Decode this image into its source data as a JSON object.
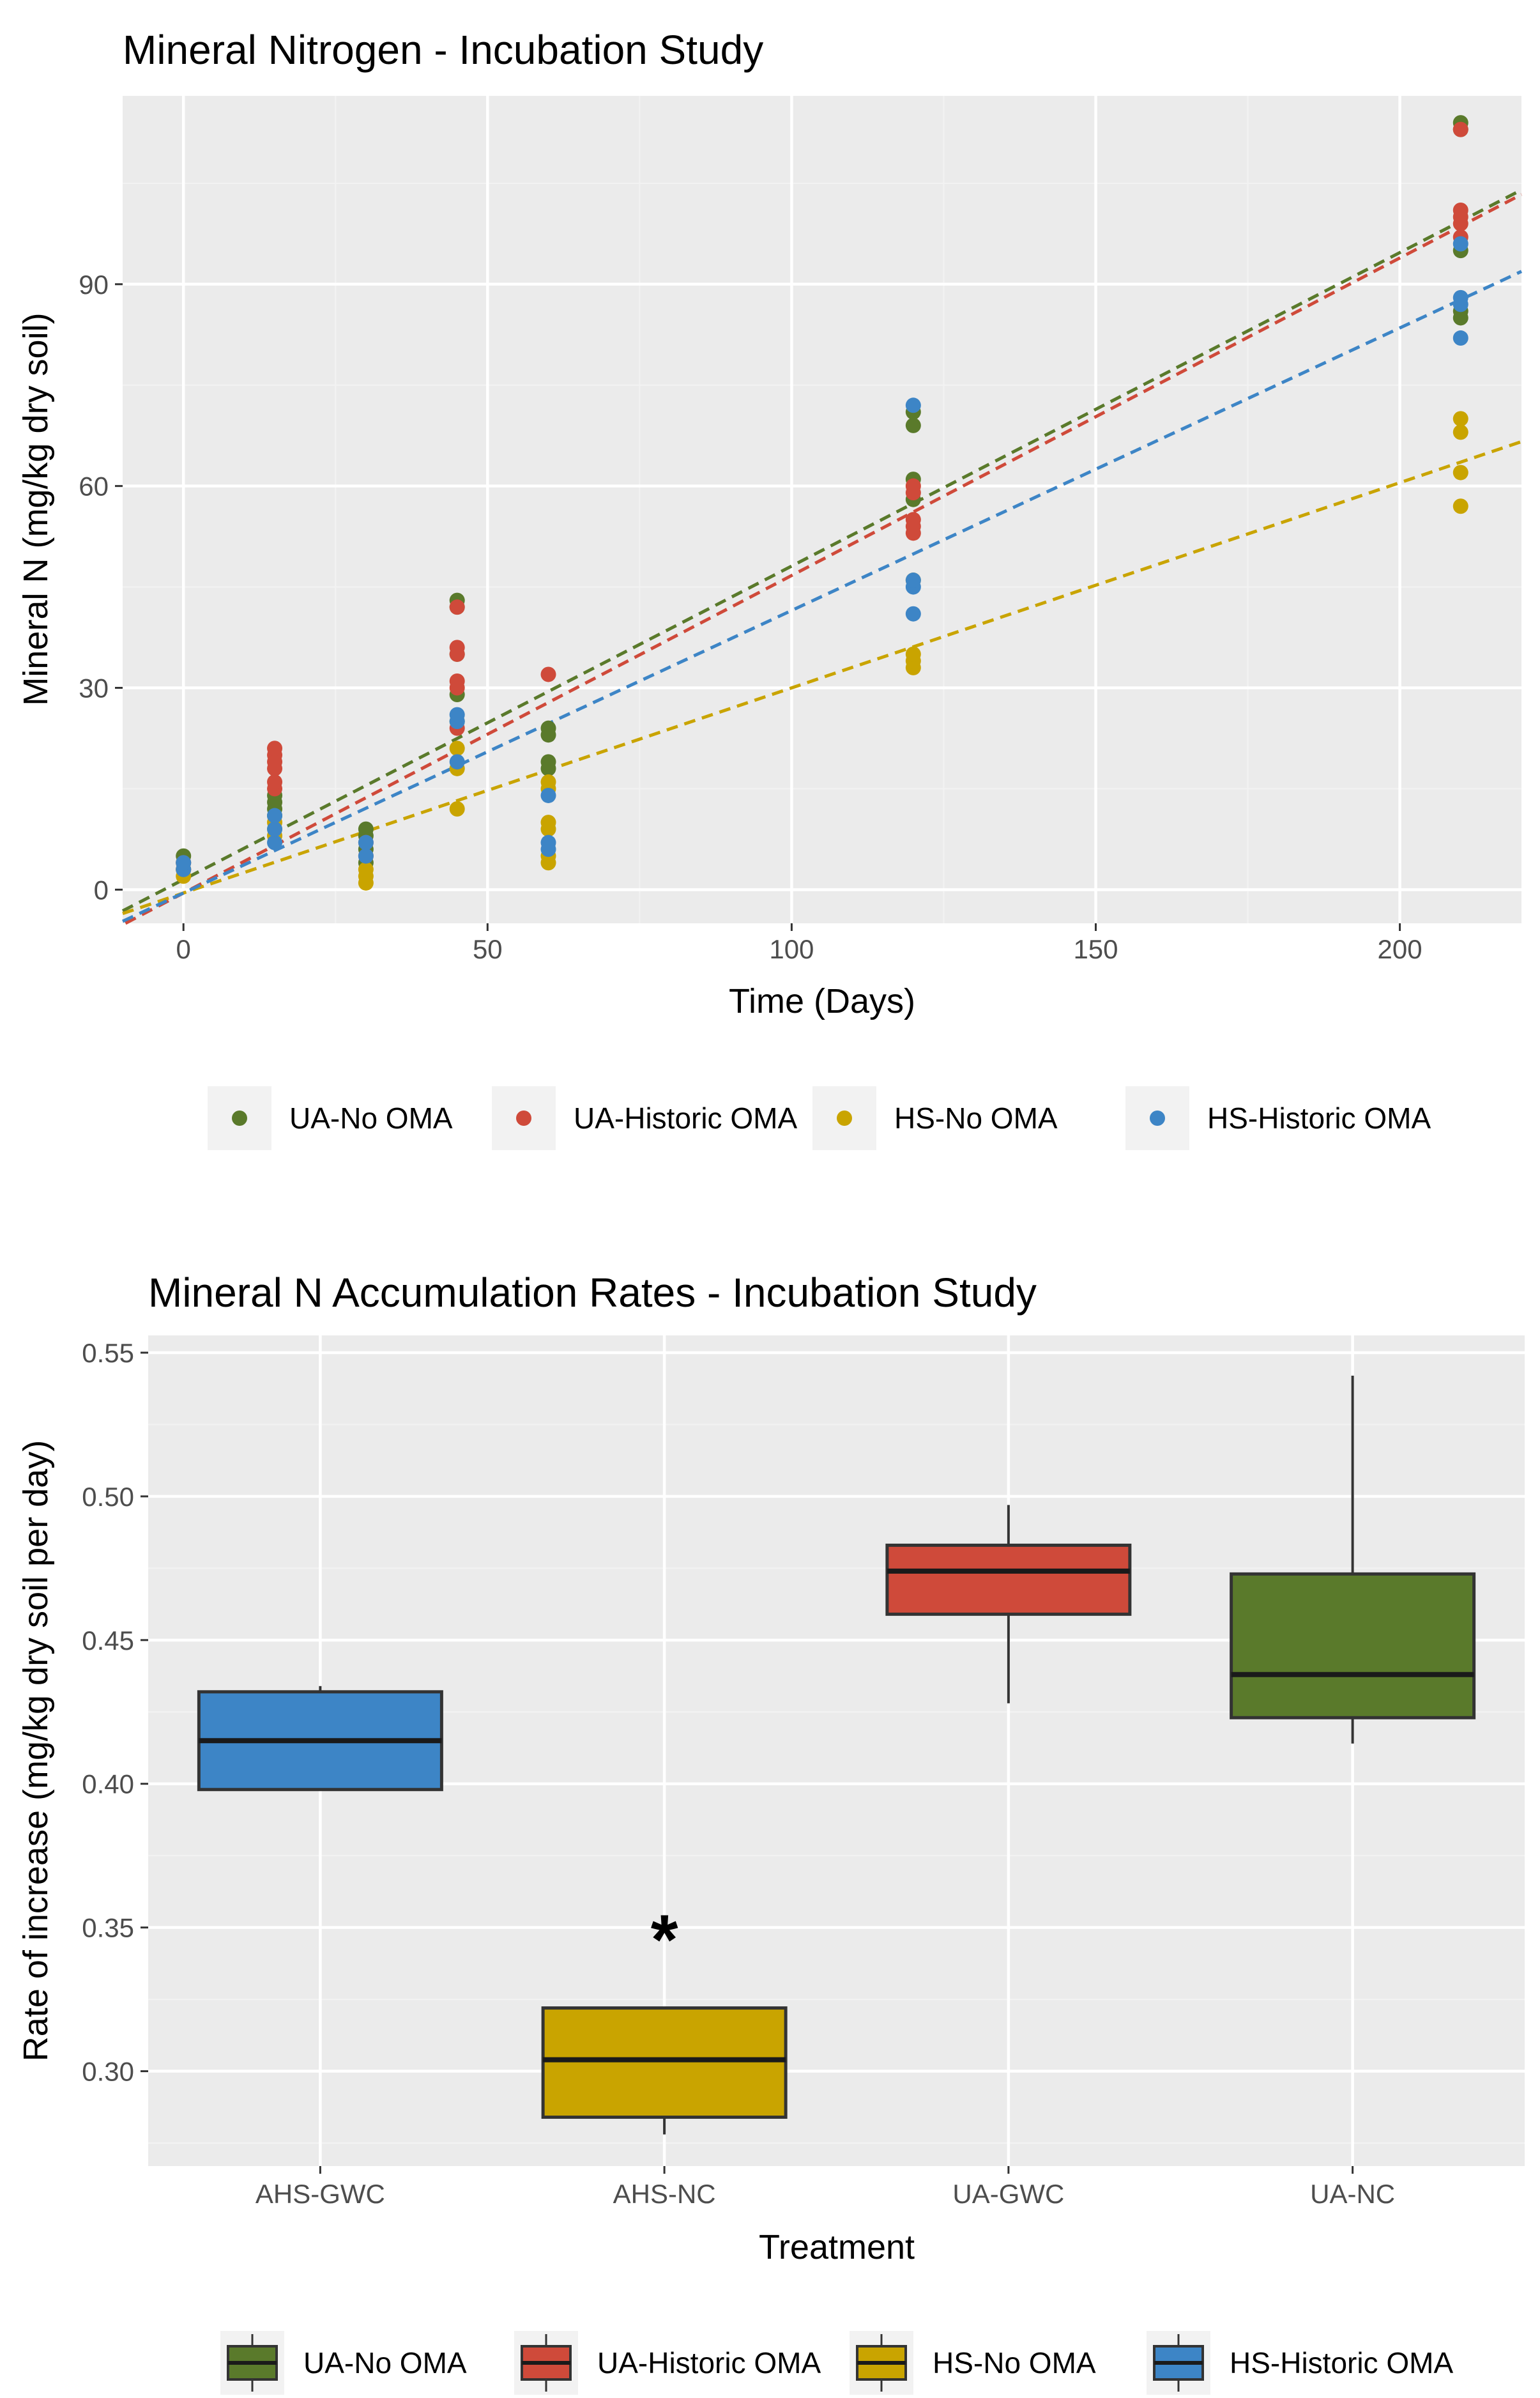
{
  "chart_data": [
    {
      "type": "scatter",
      "title": "Mineral Nitrogen - Incubation Study",
      "xlabel": "Time (Days)",
      "ylabel": "Mineral N (mg/kg dry soil)",
      "xlim": [
        -10,
        220
      ],
      "ylim": [
        -5,
        118
      ],
      "x_ticks": [
        0,
        50,
        100,
        150,
        200
      ],
      "y_ticks": [
        0,
        30,
        60,
        90
      ],
      "x_tick_labels": [
        "0",
        "50",
        "100",
        "150",
        "200"
      ],
      "y_tick_labels": [
        "0",
        "30",
        "60",
        "90"
      ],
      "legend_position": "bottom",
      "series": [
        {
          "name": "UA-No OMA",
          "color": "#5a7a2b",
          "trend": {
            "intercept": 1.5,
            "slope": 0.466
          },
          "points": [
            [
              0,
              3
            ],
            [
              0,
              4
            ],
            [
              0,
              5
            ],
            [
              15,
              11
            ],
            [
              15,
              12
            ],
            [
              15,
              13
            ],
            [
              15,
              14
            ],
            [
              30,
              4
            ],
            [
              30,
              6
            ],
            [
              30,
              8
            ],
            [
              30,
              9
            ],
            [
              45,
              25
            ],
            [
              45,
              29
            ],
            [
              45,
              35
            ],
            [
              45,
              42
            ],
            [
              45,
              43
            ],
            [
              60,
              18
            ],
            [
              60,
              19
            ],
            [
              60,
              23
            ],
            [
              60,
              24
            ],
            [
              120,
              58
            ],
            [
              120,
              61
            ],
            [
              120,
              69
            ],
            [
              120,
              71
            ],
            [
              210,
              85
            ],
            [
              210,
              86
            ],
            [
              210,
              95
            ],
            [
              210,
              113
            ],
            [
              210,
              114
            ]
          ]
        },
        {
          "name": "UA-Historic OMA",
          "color": "#cf4a3a",
          "trend": {
            "intercept": -0.5,
            "slope": 0.472
          },
          "points": [
            [
              0,
              3
            ],
            [
              0,
              4
            ],
            [
              15,
              15
            ],
            [
              15,
              16
            ],
            [
              15,
              18
            ],
            [
              15,
              19
            ],
            [
              15,
              20
            ],
            [
              15,
              21
            ],
            [
              30,
              5
            ],
            [
              30,
              7
            ],
            [
              45,
              24
            ],
            [
              45,
              30
            ],
            [
              45,
              31
            ],
            [
              45,
              35
            ],
            [
              45,
              36
            ],
            [
              45,
              42
            ],
            [
              60,
              32
            ],
            [
              120,
              53
            ],
            [
              120,
              54
            ],
            [
              120,
              55
            ],
            [
              120,
              59
            ],
            [
              120,
              60
            ],
            [
              210,
              97
            ],
            [
              210,
              99
            ],
            [
              210,
              100
            ],
            [
              210,
              101
            ],
            [
              210,
              113
            ]
          ]
        },
        {
          "name": "HS-No OMA",
          "color": "#c9a400",
          "trend": {
            "intercept": -0.5,
            "slope": 0.305
          },
          "points": [
            [
              0,
              2
            ],
            [
              0,
              3
            ],
            [
              15,
              8
            ],
            [
              15,
              9
            ],
            [
              15,
              10
            ],
            [
              30,
              1
            ],
            [
              30,
              2
            ],
            [
              30,
              3
            ],
            [
              45,
              12
            ],
            [
              45,
              18
            ],
            [
              45,
              21
            ],
            [
              60,
              4
            ],
            [
              60,
              5
            ],
            [
              60,
              9
            ],
            [
              60,
              10
            ],
            [
              60,
              15
            ],
            [
              60,
              16
            ],
            [
              120,
              33
            ],
            [
              120,
              34
            ],
            [
              120,
              35
            ],
            [
              120,
              46
            ],
            [
              210,
              57
            ],
            [
              210,
              62
            ],
            [
              210,
              68
            ],
            [
              210,
              70
            ]
          ]
        },
        {
          "name": "HS-Historic OMA",
          "color": "#3d85c6",
          "trend": {
            "intercept": -0.5,
            "slope": 0.42
          },
          "points": [
            [
              0,
              3
            ],
            [
              0,
              4
            ],
            [
              15,
              7
            ],
            [
              15,
              9
            ],
            [
              15,
              11
            ],
            [
              30,
              5
            ],
            [
              30,
              7
            ],
            [
              45,
              19
            ],
            [
              45,
              25
            ],
            [
              45,
              26
            ],
            [
              60,
              6
            ],
            [
              60,
              7
            ],
            [
              60,
              14
            ],
            [
              120,
              41
            ],
            [
              120,
              45
            ],
            [
              120,
              46
            ],
            [
              120,
              72
            ],
            [
              210,
              82
            ],
            [
              210,
              87
            ],
            [
              210,
              88
            ],
            [
              210,
              96
            ]
          ]
        }
      ]
    },
    {
      "type": "box",
      "title": "Mineral N Accumulation Rates - Incubation Study",
      "xlabel": "Treatment",
      "ylabel": "Rate of increase (mg/kg dry soil per day)",
      "ylim": [
        0.267,
        0.556
      ],
      "y_ticks": [
        0.3,
        0.35,
        0.4,
        0.45,
        0.5,
        0.55
      ],
      "y_tick_labels": [
        "0.30",
        "0.35",
        "0.40",
        "0.45",
        "0.50",
        "0.55"
      ],
      "categories": [
        "AHS-GWC",
        "AHS-NC",
        "UA-GWC",
        "UA-NC"
      ],
      "boxes": [
        {
          "category": "AHS-GWC",
          "group": "HS-Historic OMA",
          "color": "#3d85c6",
          "min": 0.398,
          "q1": 0.398,
          "median": 0.415,
          "q3": 0.432,
          "max": 0.434
        },
        {
          "category": "AHS-NC",
          "group": "HS-No OMA",
          "color": "#c9a400",
          "min": 0.278,
          "q1": 0.284,
          "median": 0.304,
          "q3": 0.322,
          "max": 0.322
        },
        {
          "category": "UA-GWC",
          "group": "UA-Historic OMA",
          "color": "#cf4a3a",
          "min": 0.428,
          "q1": 0.459,
          "median": 0.474,
          "q3": 0.483,
          "max": 0.497
        },
        {
          "category": "UA-NC",
          "group": "UA-No OMA",
          "color": "#5a7a2b",
          "min": 0.414,
          "q1": 0.423,
          "median": 0.438,
          "q3": 0.473,
          "max": 0.542
        }
      ],
      "annotations": [
        {
          "text": "*",
          "category": "AHS-NC",
          "y": 0.348
        }
      ],
      "legend": [
        "UA-No OMA",
        "UA-Historic OMA",
        "HS-No OMA",
        "HS-Historic OMA"
      ],
      "legend_colors": [
        "#5a7a2b",
        "#cf4a3a",
        "#c9a400",
        "#3d85c6"
      ],
      "legend_position": "bottom"
    }
  ]
}
